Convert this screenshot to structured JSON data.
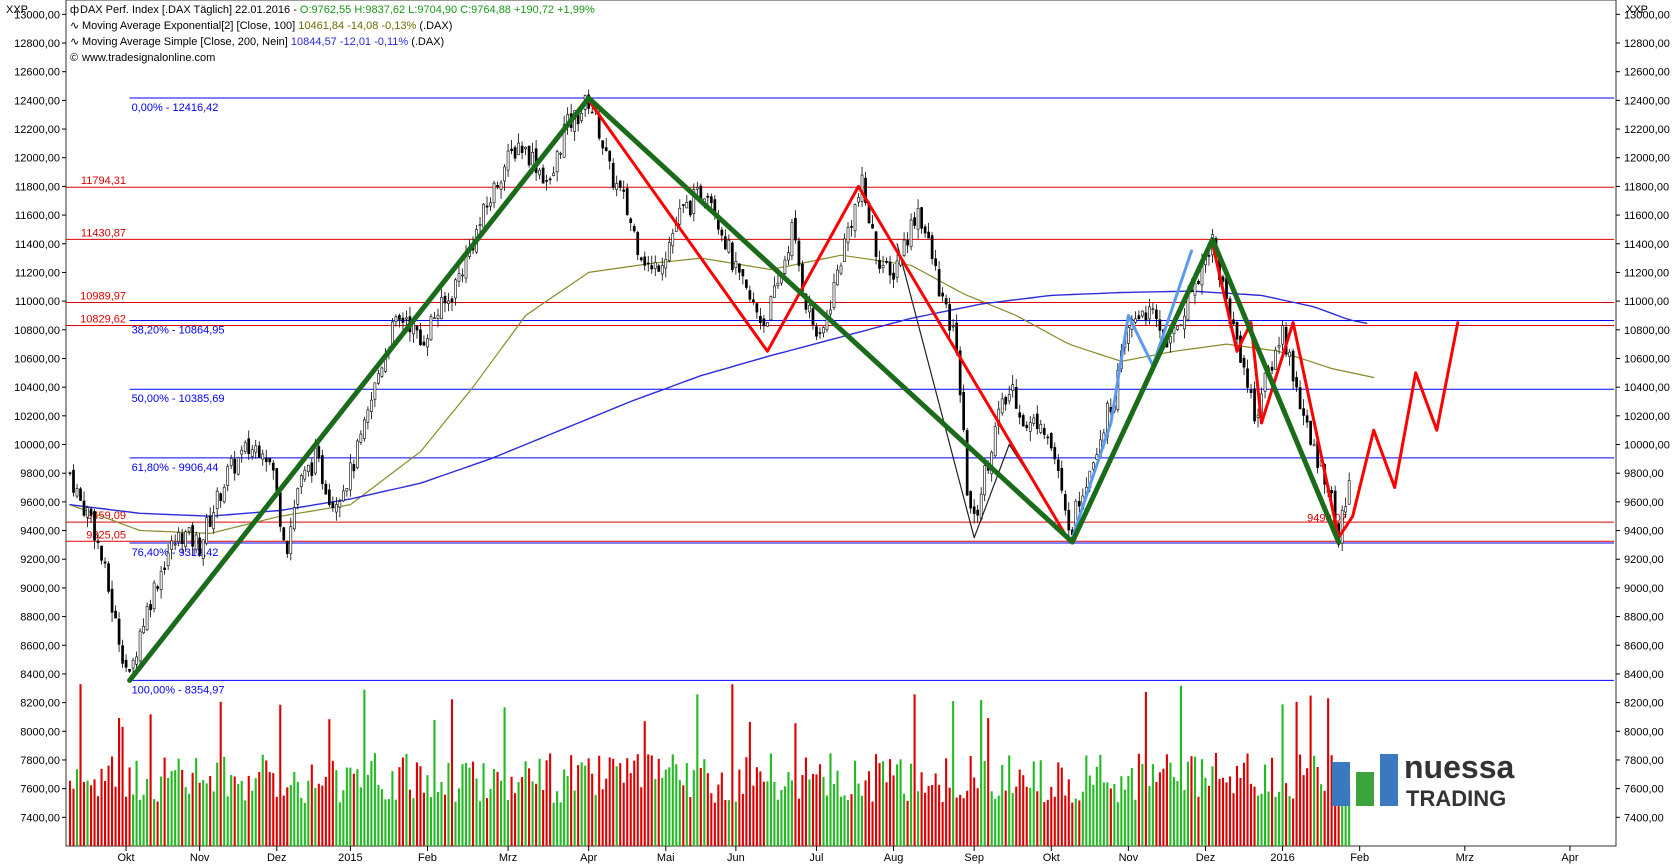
{
  "header": {
    "corner_left": "XXP",
    "corner_right": "XXP",
    "line1_prefix": "DAX Perf. Index [.DAX  Täglich] 22.01.2016 - ",
    "line1_values": "O:9762,55 H:9837,62 L:9704,90 C:9764,88 +190,72 +1,99%",
    "line2_prefix": "Moving Average Exponential[2] [Close, 100] ",
    "line2_values": "10461,84 -14,08 -0,13%",
    "line2_suffix": " (.DAX)",
    "line3_prefix": "Moving Average Simple [Close, 200, Nein] ",
    "line3_values": "10844,57 -12,01 -0,11%",
    "line3_suffix": " (.DAX)",
    "line4": "www.tradesignalonline.com"
  },
  "logo": {
    "line1": "nuessa",
    "line2": "TRADING"
  },
  "colors": {
    "blue_level": "#0000ff",
    "red_level": "#e00000",
    "green_swing": "#1a6b1a",
    "red_swing": "#ff0000",
    "blue_swing": "#5a9bf0",
    "ema": "#8a8a2a",
    "sma": "#2b2bdd",
    "bull_vol": "#22bb22",
    "bear_vol": "#dd0000"
  },
  "chart_data": {
    "type": "candlestick",
    "ylim": [
      7200,
      13100
    ],
    "y_ticks": [
      "7400,00",
      "7600,00",
      "7800,00",
      "8000,00",
      "8200,00",
      "8400,00",
      "8600,00",
      "8800,00",
      "9000,00",
      "9200,00",
      "9400,00",
      "9600,00",
      "9800,00",
      "10000,00",
      "10200,00",
      "10400,00",
      "10600,00",
      "10800,00",
      "11000,00",
      "11200,00",
      "11400,00",
      "11600,00",
      "11800,00",
      "12000,00",
      "12200,00",
      "12400,00",
      "12600,00",
      "12800,00",
      "13000,00"
    ],
    "x_ticks": [
      {
        "label": "Okt",
        "t": 16
      },
      {
        "label": "Nov",
        "t": 37
      },
      {
        "label": "Dez",
        "t": 59
      },
      {
        "label": "2015",
        "t": 80
      },
      {
        "label": "Feb",
        "t": 102
      },
      {
        "label": "Mrz",
        "t": 125
      },
      {
        "label": "Apr",
        "t": 148
      },
      {
        "label": "Mai",
        "t": 170
      },
      {
        "label": "Jun",
        "t": 190
      },
      {
        "label": "Jul",
        "t": 213
      },
      {
        "label": "Aug",
        "t": 235
      },
      {
        "label": "Sep",
        "t": 258
      },
      {
        "label": "Okt",
        "t": 280
      },
      {
        "label": "Nov",
        "t": 302
      },
      {
        "label": "Dez",
        "t": 324
      },
      {
        "label": "2016",
        "t": 346
      },
      {
        "label": "Feb",
        "t": 368
      },
      {
        "label": "Mrz",
        "t": 398
      },
      {
        "label": "Apr",
        "t": 428
      }
    ],
    "blue_levels": [
      {
        "label": "0,00% - 12416,42",
        "value": 12416.42
      },
      {
        "label": "38,20% - 10864,95",
        "value": 10864.95
      },
      {
        "label": "50,00% - 10385,69",
        "value": 10385.69
      },
      {
        "label": "61,80% - 9906,44",
        "value": 9906.44
      },
      {
        "label": "76,40% - 9313,42",
        "value": 9313.42
      },
      {
        "label": "100,00% - 8354,97",
        "value": 8354.97
      }
    ],
    "red_levels": [
      {
        "label": "11794,31",
        "value": 11794.31
      },
      {
        "label": "11430,87",
        "value": 11430.87
      },
      {
        "label": "10989,97",
        "value": 10989.97
      },
      {
        "label": "10829,62",
        "value": 10829.62
      },
      {
        "label": "9459,09",
        "value": 9459.09
      },
      {
        "label": "9325,05",
        "value": 9325.05
      }
    ],
    "red_right_label": {
      "label": "9490,07",
      "value": 9490.07,
      "t": 353
    },
    "price_anchors": [
      [
        0,
        9800
      ],
      [
        3,
        9600
      ],
      [
        6,
        9500
      ],
      [
        10,
        9100
      ],
      [
        13,
        8750
      ],
      [
        17,
        8355
      ],
      [
        20,
        8700
      ],
      [
        24,
        9000
      ],
      [
        28,
        9250
      ],
      [
        32,
        9380
      ],
      [
        37,
        9300
      ],
      [
        41,
        9550
      ],
      [
        45,
        9800
      ],
      [
        50,
        9950
      ],
      [
        55,
        10000
      ],
      [
        58,
        9800
      ],
      [
        60,
        9500
      ],
      [
        62,
        9300
      ],
      [
        65,
        9700
      ],
      [
        70,
        9900
      ],
      [
        75,
        9600
      ],
      [
        80,
        9800
      ],
      [
        84,
        10100
      ],
      [
        88,
        10500
      ],
      [
        92,
        10800
      ],
      [
        96,
        10900
      ],
      [
        100,
        10700
      ],
      [
        104,
        10900
      ],
      [
        108,
        11000
      ],
      [
        113,
        11300
      ],
      [
        118,
        11600
      ],
      [
        123,
        11900
      ],
      [
        128,
        12100
      ],
      [
        132,
        12000
      ],
      [
        137,
        11800
      ],
      [
        141,
        12200
      ],
      [
        145,
        12300
      ],
      [
        148,
        12400
      ],
      [
        151,
        12200
      ],
      [
        154,
        11900
      ],
      [
        158,
        11700
      ],
      [
        162,
        11400
      ],
      [
        166,
        11200
      ],
      [
        170,
        11350
      ],
      [
        174,
        11600
      ],
      [
        178,
        11700
      ],
      [
        182,
        11800
      ],
      [
        186,
        11500
      ],
      [
        190,
        11200
      ],
      [
        194,
        11000
      ],
      [
        198,
        10850
      ],
      [
        202,
        11100
      ],
      [
        206,
        11500
      ],
      [
        210,
        11000
      ],
      [
        214,
        10700
      ],
      [
        218,
        11100
      ],
      [
        222,
        11500
      ],
      [
        226,
        11800
      ],
      [
        230,
        11350
      ],
      [
        234,
        11150
      ],
      [
        238,
        11400
      ],
      [
        242,
        11650
      ],
      [
        246,
        11300
      ],
      [
        250,
        10900
      ],
      [
        253,
        10700
      ],
      [
        256,
        9700
      ],
      [
        258,
        9450
      ],
      [
        261,
        9800
      ],
      [
        265,
        10200
      ],
      [
        269,
        10400
      ],
      [
        273,
        10100
      ],
      [
        277,
        10200
      ],
      [
        281,
        9900
      ],
      [
        284,
        9500
      ],
      [
        286,
        9450
      ],
      [
        289,
        9700
      ],
      [
        293,
        10000
      ],
      [
        298,
        10350
      ],
      [
        302,
        10800
      ],
      [
        306,
        10950
      ],
      [
        310,
        10850
      ],
      [
        314,
        10700
      ],
      [
        318,
        10950
      ],
      [
        322,
        11200
      ],
      [
        326,
        11430
      ],
      [
        328,
        11200
      ],
      [
        331,
        10900
      ],
      [
        334,
        10650
      ],
      [
        338,
        10200
      ],
      [
        342,
        10500
      ],
      [
        346,
        10800
      ],
      [
        350,
        10400
      ],
      [
        354,
        10000
      ],
      [
        358,
        9800
      ],
      [
        361,
        9500
      ],
      [
        362,
        9320
      ],
      [
        365,
        9765
      ]
    ],
    "ema_anchors": [
      [
        0,
        9580
      ],
      [
        20,
        9400
      ],
      [
        40,
        9380
      ],
      [
        60,
        9500
      ],
      [
        80,
        9580
      ],
      [
        100,
        9950
      ],
      [
        115,
        10400
      ],
      [
        130,
        10900
      ],
      [
        148,
        11200
      ],
      [
        165,
        11260
      ],
      [
        180,
        11300
      ],
      [
        200,
        11220
      ],
      [
        220,
        11320
      ],
      [
        240,
        11250
      ],
      [
        255,
        11050
      ],
      [
        270,
        10900
      ],
      [
        285,
        10700
      ],
      [
        300,
        10580
      ],
      [
        315,
        10650
      ],
      [
        330,
        10700
      ],
      [
        345,
        10650
      ],
      [
        360,
        10530
      ],
      [
        373,
        10462
      ]
    ],
    "sma_anchors": [
      [
        0,
        9580
      ],
      [
        20,
        9520
      ],
      [
        40,
        9500
      ],
      [
        60,
        9540
      ],
      [
        80,
        9620
      ],
      [
        100,
        9730
      ],
      [
        120,
        9900
      ],
      [
        140,
        10100
      ],
      [
        160,
        10300
      ],
      [
        180,
        10480
      ],
      [
        200,
        10620
      ],
      [
        220,
        10750
      ],
      [
        240,
        10880
      ],
      [
        260,
        10980
      ],
      [
        280,
        11040
      ],
      [
        300,
        11060
      ],
      [
        320,
        11070
      ],
      [
        340,
        11040
      ],
      [
        355,
        10960
      ],
      [
        365,
        10870
      ],
      [
        370,
        10845
      ]
    ],
    "green_swing": [
      [
        17,
        8355
      ],
      [
        148,
        12416
      ],
      [
        286,
        9320
      ],
      [
        326,
        11430
      ],
      [
        362,
        9320
      ]
    ],
    "red_swing_1": [
      [
        148,
        12400
      ],
      [
        199,
        10650
      ],
      [
        225,
        11800
      ],
      [
        285,
        9330
      ]
    ],
    "red_swing_2": [
      [
        326,
        11400
      ],
      [
        333,
        10650
      ],
      [
        337,
        10850
      ],
      [
        340,
        10150
      ],
      [
        349,
        10850
      ],
      [
        362,
        9350
      ],
      [
        366,
        9500
      ],
      [
        372,
        10100
      ],
      [
        378,
        9700
      ],
      [
        384,
        10500
      ],
      [
        390,
        10100
      ],
      [
        396,
        10850
      ]
    ],
    "blue_swing": [
      [
        286,
        9350
      ],
      [
        297,
        10150
      ],
      [
        302,
        10900
      ],
      [
        309,
        10550
      ],
      [
        320,
        11350
      ]
    ],
    "black_swing": [
      [
        236,
        11400
      ],
      [
        258,
        9350
      ],
      [
        268,
        10000
      ],
      [
        276,
        9700
      ]
    ]
  }
}
